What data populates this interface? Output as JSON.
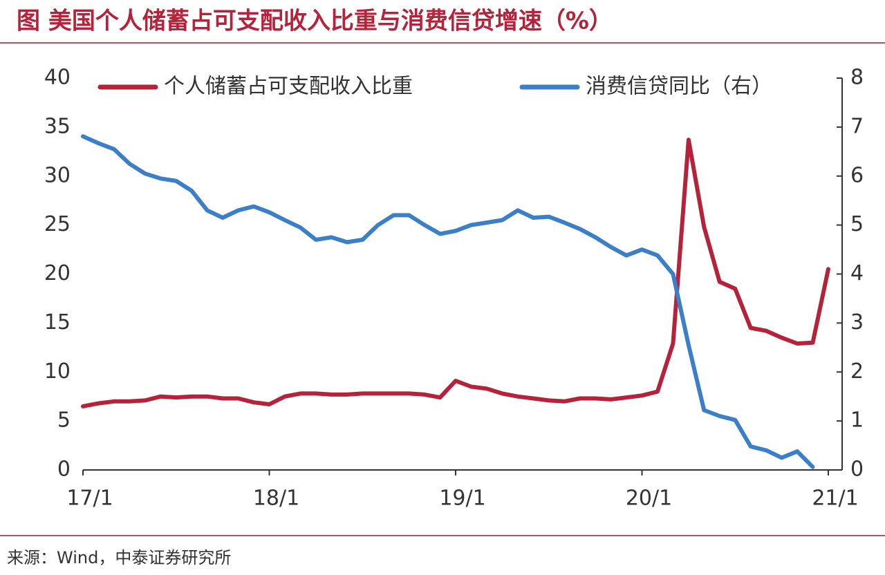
{
  "chart_data": {
    "type": "line",
    "title": "图  美国个人储蓄占可支配收入比重与消费信贷增速（%）",
    "source": "来源：Wind，中泰证券研究所",
    "categories": [
      "17/1",
      null,
      null,
      null,
      null,
      null,
      null,
      null,
      null,
      null,
      null,
      null,
      "18/1",
      null,
      null,
      null,
      null,
      null,
      null,
      null,
      null,
      null,
      null,
      null,
      "19/1",
      null,
      null,
      null,
      null,
      null,
      null,
      null,
      null,
      null,
      null,
      null,
      "20/1",
      null,
      null,
      null,
      null,
      null,
      null,
      null,
      null,
      null,
      null,
      null,
      "21/1"
    ],
    "series": [
      {
        "name": "个人储蓄占可支配收入比重",
        "color": "#b5223a",
        "axis": "y",
        "values": [
          6.5,
          6.8,
          7.0,
          7.0,
          7.1,
          7.5,
          7.4,
          7.5,
          7.5,
          7.3,
          7.3,
          6.9,
          6.7,
          7.5,
          7.8,
          7.8,
          7.7,
          7.7,
          7.8,
          7.8,
          7.8,
          7.8,
          7.7,
          7.4,
          9.1,
          8.5,
          8.3,
          7.8,
          7.5,
          7.3,
          7.1,
          7.0,
          7.3,
          7.3,
          7.2,
          7.4,
          7.6,
          8.0,
          12.9,
          33.7,
          24.8,
          19.2,
          18.5,
          14.5,
          14.2,
          13.5,
          12.9,
          13.0,
          20.5
        ]
      },
      {
        "name": "消费信贷同比（右）",
        "color": "#3a7fc8",
        "axis": "y2",
        "values": [
          6.81,
          6.67,
          6.55,
          6.25,
          6.05,
          5.95,
          5.9,
          5.7,
          5.3,
          5.15,
          5.3,
          5.38,
          5.26,
          5.1,
          4.95,
          4.7,
          4.75,
          4.65,
          4.7,
          5.0,
          5.2,
          5.2,
          5.0,
          4.82,
          4.88,
          5.0,
          5.05,
          5.1,
          5.3,
          5.15,
          5.17,
          5.05,
          4.92,
          4.75,
          4.55,
          4.38,
          4.5,
          4.38,
          4.0,
          2.55,
          1.22,
          1.1,
          1.02,
          0.48,
          0.4,
          0.25,
          0.38,
          0.06,
          null
        ]
      }
    ],
    "ylim": [
      0,
      40
    ],
    "yticks": [
      0,
      5,
      10,
      15,
      20,
      25,
      30,
      35,
      40
    ],
    "y2lim": [
      0,
      8
    ],
    "y2ticks": [
      0,
      1,
      2,
      3,
      4,
      5,
      6,
      7,
      8
    ],
    "legend": "top"
  }
}
